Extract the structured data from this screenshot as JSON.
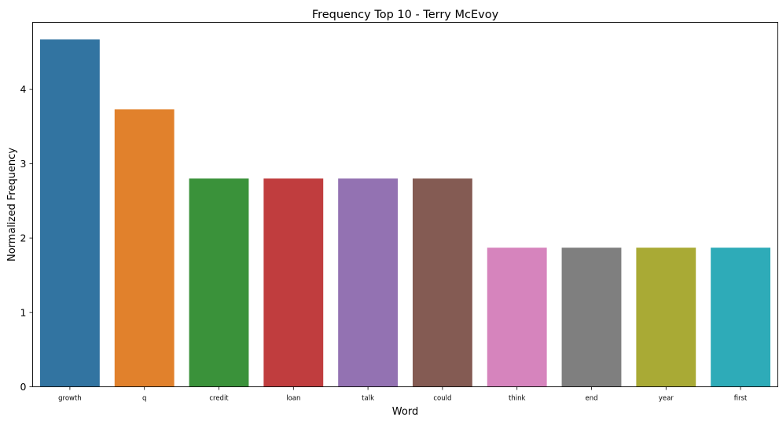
{
  "chart_data": {
    "type": "bar",
    "title": "Frequency Top 10 - Terry McEvoy",
    "xlabel": "Word",
    "ylabel": "Normalized Frequency",
    "categories": [
      "growth",
      "q",
      "credit",
      "loan",
      "talk",
      "could",
      "think",
      "end",
      "year",
      "first"
    ],
    "values": [
      4.67,
      3.73,
      2.8,
      2.8,
      2.8,
      2.8,
      1.87,
      1.87,
      1.87,
      1.87
    ],
    "colors": [
      "#3274a1",
      "#e1812c",
      "#3a923a",
      "#c03d3e",
      "#9372b2",
      "#845b53",
      "#d684bd",
      "#7f7f7f",
      "#a9aa35",
      "#2eabb8"
    ],
    "ylim": [
      0,
      4.9
    ],
    "yticks": [
      0,
      1,
      2,
      3,
      4
    ],
    "grid": false,
    "legend": "none"
  }
}
